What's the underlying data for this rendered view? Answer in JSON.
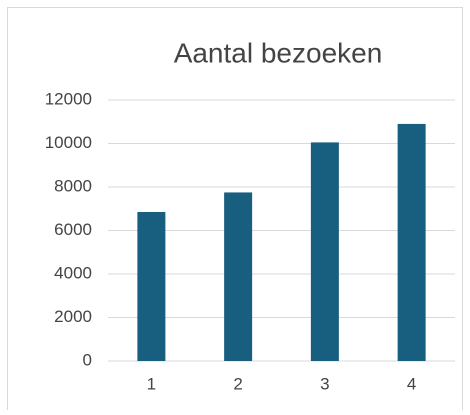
{
  "chart_data": {
    "type": "bar",
    "title": "Aantal bezoeken",
    "categories": [
      "1",
      "2",
      "3",
      "4"
    ],
    "values": [
      6850,
      7750,
      10050,
      10900
    ],
    "color": "#175e7f",
    "ylim": [
      0,
      12000
    ],
    "yticks": [
      0,
      2000,
      4000,
      6000,
      8000,
      10000,
      12000
    ],
    "grid": true
  }
}
